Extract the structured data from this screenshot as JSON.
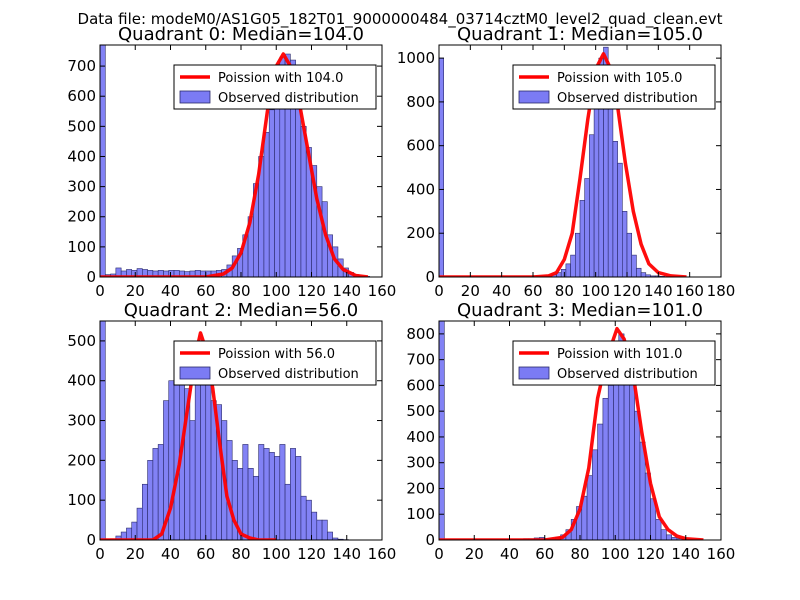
{
  "figure": {
    "suptitle": "Data file: modeM0/AS1G05_182T01_9000000484_03714cztM0_level2_quad_clean.evt"
  },
  "colors": {
    "hist_fill": "#7b7bf4",
    "hist_edge": "#2a2a6a",
    "poisson_line": "#ff0000"
  },
  "chart_data": [
    {
      "type": "bar",
      "title": "Quadrant 0: Median=104.0",
      "xlim": [
        0,
        160
      ],
      "ylim": [
        0,
        770
      ],
      "xticks": [
        0,
        20,
        40,
        60,
        80,
        100,
        120,
        140,
        160
      ],
      "yticks": [
        0,
        100,
        200,
        300,
        400,
        500,
        600,
        700
      ],
      "bin_width": 3,
      "bin_start": 0,
      "values": [
        770,
        8,
        10,
        30,
        20,
        25,
        22,
        28,
        25,
        22,
        20,
        22,
        20,
        22,
        22,
        20,
        18,
        20,
        22,
        20,
        20,
        20,
        22,
        25,
        40,
        70,
        95,
        140,
        200,
        310,
        400,
        480,
        555,
        680,
        730,
        740,
        720,
        600,
        500,
        430,
        370,
        300,
        250,
        140,
        100,
        60,
        30,
        15,
        8,
        3,
        2
      ],
      "poisson": {
        "label": "Poission with 104.0",
        "mean": 104.0,
        "x": [
          0,
          60,
          70,
          75,
          80,
          85,
          90,
          95,
          100,
          104,
          108,
          113,
          118,
          123,
          128,
          133,
          138,
          145,
          152
        ],
        "y": [
          0,
          0,
          10,
          30,
          80,
          180,
          340,
          550,
          700,
          740,
          700,
          580,
          420,
          260,
          140,
          60,
          25,
          5,
          0
        ]
      },
      "legend": {
        "line_label": "Poission with 104.0",
        "hist_label": "Observed distribution",
        "loc": "upper right"
      }
    },
    {
      "type": "bar",
      "title": "Quadrant 1: Median=105.0",
      "xlim": [
        0,
        180
      ],
      "ylim": [
        0,
        1060
      ],
      "xticks": [
        0,
        20,
        40,
        60,
        80,
        100,
        120,
        140,
        160,
        180
      ],
      "yticks": [
        0,
        200,
        400,
        600,
        800,
        1000
      ],
      "bin_width": 3,
      "bin_start": 0,
      "values": [
        1000,
        2,
        2,
        2,
        2,
        2,
        2,
        2,
        2,
        2,
        2,
        2,
        2,
        2,
        2,
        2,
        2,
        2,
        2,
        2,
        5,
        5,
        5,
        5,
        10,
        20,
        35,
        60,
        100,
        200,
        350,
        450,
        650,
        800,
        1000,
        1050,
        900,
        620,
        520,
        300,
        200,
        100,
        40,
        20,
        10,
        5,
        5,
        3,
        2,
        2,
        1
      ],
      "poisson": {
        "label": "Poission with 105.0",
        "mean": 105.0,
        "x": [
          0,
          60,
          70,
          75,
          80,
          85,
          90,
          95,
          100,
          105,
          109,
          114,
          119,
          124,
          129,
          134,
          140,
          148,
          158
        ],
        "y": [
          0,
          0,
          5,
          20,
          80,
          200,
          450,
          720,
          950,
          1020,
          960,
          780,
          520,
          300,
          150,
          60,
          20,
          5,
          0
        ]
      },
      "legend": {
        "line_label": "Poission with 105.0",
        "hist_label": "Observed distribution",
        "loc": "upper right"
      }
    },
    {
      "type": "bar",
      "title": "Quadrant 2: Median=56.0",
      "xlim": [
        0,
        160
      ],
      "ylim": [
        0,
        550
      ],
      "xticks": [
        0,
        20,
        40,
        60,
        80,
        100,
        120,
        140,
        160
      ],
      "yticks": [
        0,
        100,
        200,
        300,
        400,
        500
      ],
      "bin_width": 3,
      "bin_start": 0,
      "values": [
        550,
        2,
        3,
        10,
        20,
        30,
        45,
        80,
        140,
        200,
        230,
        240,
        350,
        400,
        460,
        450,
        380,
        300,
        420,
        480,
        450,
        350,
        340,
        300,
        250,
        200,
        180,
        240,
        180,
        160,
        240,
        230,
        220,
        210,
        240,
        140,
        230,
        210,
        110,
        100,
        70,
        50,
        50,
        20,
        5,
        2,
        1
      ],
      "poisson": {
        "label": "Poission with 56.0",
        "mean": 56.0,
        "x": [
          0,
          30,
          35,
          40,
          45,
          50,
          54,
          57,
          60,
          64,
          68,
          72,
          76,
          80,
          85,
          90,
          100
        ],
        "y": [
          0,
          0,
          15,
          80,
          190,
          340,
          460,
          520,
          480,
          380,
          240,
          110,
          50,
          15,
          5,
          0,
          0
        ]
      },
      "legend": {
        "line_label": "Poission with 56.0",
        "hist_label": "Observed distribution",
        "loc": "upper right"
      }
    },
    {
      "type": "bar",
      "title": "Quadrant 3: Median=101.0",
      "xlim": [
        0,
        160
      ],
      "ylim": [
        0,
        850
      ],
      "xticks": [
        0,
        20,
        40,
        60,
        80,
        100,
        120,
        140,
        160
      ],
      "yticks": [
        0,
        100,
        200,
        300,
        400,
        500,
        600,
        700,
        800
      ],
      "bin_width": 3,
      "bin_start": 0,
      "values": [
        850,
        2,
        2,
        2,
        2,
        2,
        2,
        2,
        2,
        2,
        2,
        2,
        2,
        2,
        2,
        2,
        5,
        5,
        8,
        10,
        5,
        5,
        10,
        20,
        40,
        80,
        130,
        170,
        250,
        350,
        450,
        550,
        600,
        750,
        800,
        700,
        620,
        500,
        380,
        260,
        160,
        80,
        40,
        20,
        10,
        5,
        3,
        2,
        1
      ],
      "poisson": {
        "label": "Poission with 101.0",
        "mean": 101.0,
        "x": [
          0,
          60,
          70,
          75,
          80,
          85,
          90,
          95,
          101,
          105,
          110,
          115,
          120,
          125,
          130,
          135,
          140,
          150
        ],
        "y": [
          0,
          0,
          10,
          40,
          120,
          280,
          550,
          700,
          820,
          780,
          650,
          420,
          220,
          90,
          40,
          15,
          5,
          0
        ]
      },
      "legend": {
        "line_label": "Poission with 101.0",
        "hist_label": "Observed distribution",
        "loc": "upper right"
      }
    }
  ]
}
